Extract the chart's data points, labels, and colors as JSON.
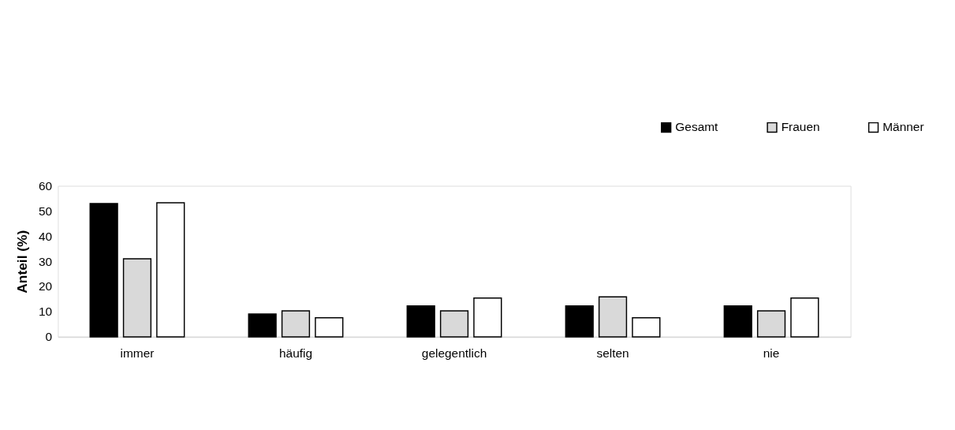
{
  "chart_data": {
    "type": "bar",
    "ylabel": "Anteil (%)",
    "categories": [
      "immer",
      "häufig",
      "gelegentlich",
      "selten",
      "nie"
    ],
    "series": [
      {
        "name": "Gesamt",
        "color": "#000000",
        "values": [
          53,
          9.1,
          12.3,
          12.3,
          12.3
        ]
      },
      {
        "name": "Frauen",
        "color": "#d9d9d9",
        "values": [
          31,
          10.3,
          10.3,
          15.9,
          10.3
        ]
      },
      {
        "name": "Männer",
        "color": "#ffffff",
        "values": [
          53.3,
          7.6,
          15.4,
          7.6,
          15.4
        ]
      }
    ],
    "ylim": [
      0,
      60
    ],
    "yticks": [
      0,
      10,
      20,
      30,
      40,
      50,
      60
    ],
    "grid": false,
    "legend": "top right"
  }
}
